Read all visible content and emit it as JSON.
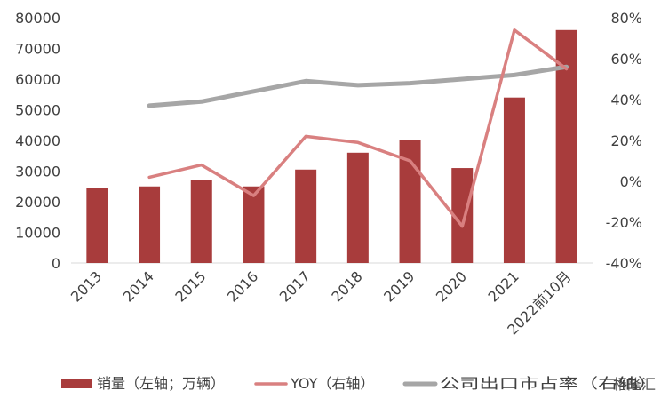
{
  "chart_data": {
    "type": "bar",
    "categories": [
      "2013",
      "2014",
      "2015",
      "2016",
      "2017",
      "2018",
      "2019",
      "2020",
      "2021",
      "2022前10月"
    ],
    "series": [
      {
        "name": "销量（左轴；万辆）",
        "type": "bar",
        "axis": "left",
        "color": "#a83c3c",
        "values": [
          24500,
          25000,
          27000,
          25000,
          30500,
          36000,
          40000,
          31000,
          54000,
          76000
        ]
      },
      {
        "name": "YOY（右轴）",
        "type": "line",
        "axis": "right",
        "color": "#d98080",
        "values": [
          null,
          0.02,
          0.08,
          -0.07,
          0.22,
          0.19,
          0.1,
          -0.22,
          0.74,
          0.55
        ]
      },
      {
        "name": "公司出口市占率（右轴）",
        "type": "line",
        "axis": "right",
        "color": "#a6a6a6",
        "values": [
          null,
          0.37,
          0.39,
          0.44,
          0.49,
          0.47,
          0.48,
          0.5,
          0.52,
          0.56
        ]
      }
    ],
    "y_left": {
      "ylim": [
        0,
        80000
      ],
      "ticks": [
        0,
        10000,
        20000,
        30000,
        40000,
        50000,
        60000,
        70000,
        80000
      ],
      "tick_labels": [
        "0",
        "10000",
        "20000",
        "30000",
        "40000",
        "50000",
        "60000",
        "70000",
        "80000"
      ]
    },
    "y_right": {
      "ylim": [
        -0.4,
        0.8
      ],
      "ticks": [
        -0.4,
        -0.2,
        0,
        0.2,
        0.4,
        0.6,
        0.8
      ],
      "tick_labels": [
        "-40%",
        "-20%",
        "0%",
        "20%",
        "40%",
        "60%",
        "80%"
      ]
    },
    "title": "",
    "xlabel": "",
    "ylabel": "",
    "grid": false,
    "legend_position": "bottom"
  },
  "watermark": "格隆汇"
}
